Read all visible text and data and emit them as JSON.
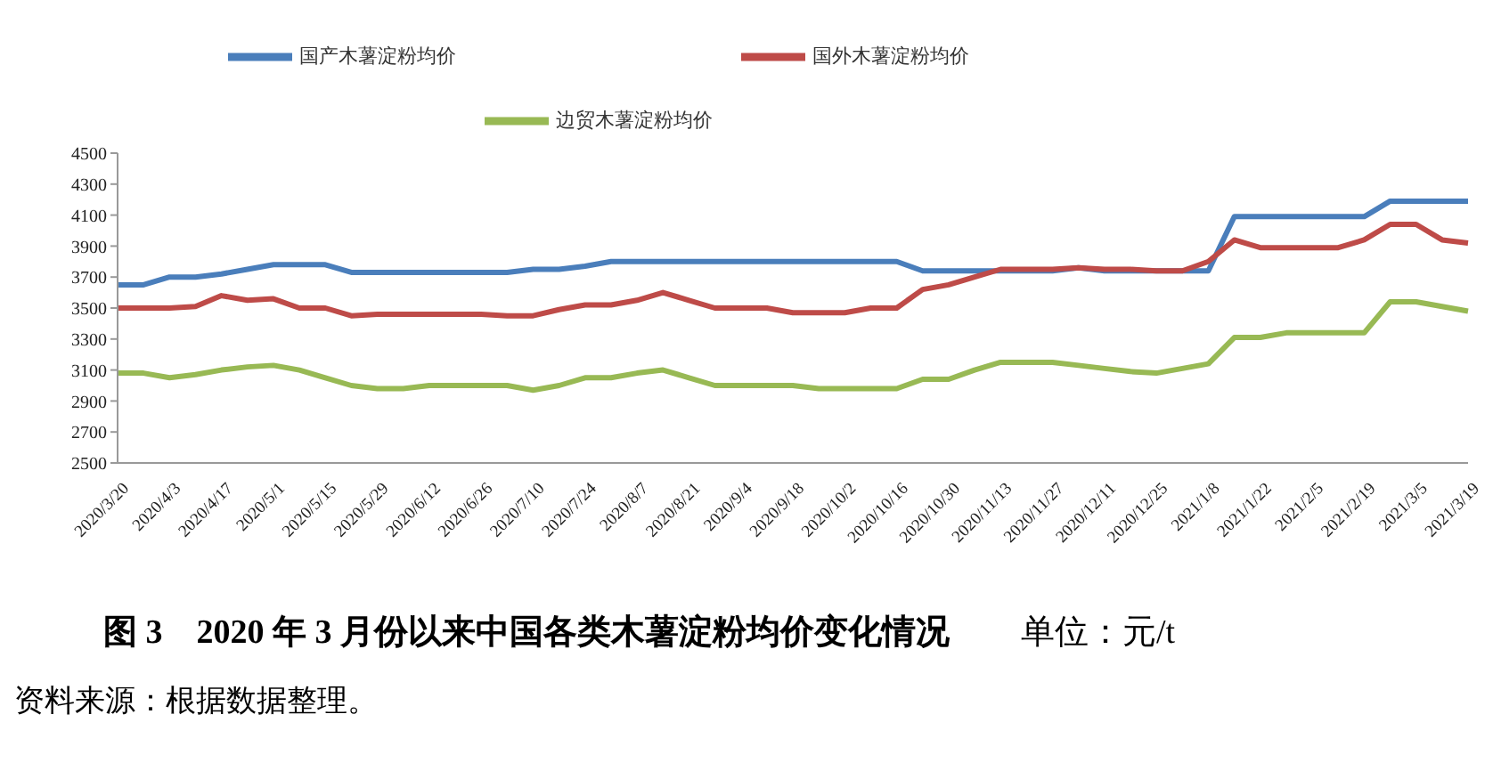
{
  "chart_data": {
    "type": "line",
    "title": "图 3　2020 年 3 月份以来中国各类木薯淀粉均价变化情况",
    "subtitle": "单位：元/t",
    "annotations": [
      "资料来源：根据数据整理。"
    ],
    "categories": [
      "2020/3/20",
      null,
      "2020/4/3",
      null,
      "2020/4/17",
      null,
      "2020/5/1",
      null,
      "2020/5/15",
      null,
      "2020/5/29",
      null,
      "2020/6/12",
      null,
      "2020/6/26",
      null,
      "2020/7/10",
      null,
      "2020/7/24",
      null,
      "2020/8/7",
      null,
      "2020/8/21",
      null,
      "2020/9/4",
      null,
      "2020/9/18",
      null,
      "2020/10/2",
      null,
      "2020/10/16",
      null,
      "2020/10/30",
      null,
      "2020/11/13",
      null,
      "2020/11/27",
      null,
      "2020/12/11",
      null,
      "2020/12/25",
      null,
      "2021/1/8",
      null,
      "2021/1/22",
      null,
      "2021/2/5",
      null,
      "2021/2/19",
      null,
      "2021/3/5",
      null,
      "2021/3/19"
    ],
    "series": [
      {
        "name": "国产木薯淀粉均价",
        "color": "#4a7ebb",
        "values": [
          3650,
          3650,
          3700,
          3700,
          3720,
          3750,
          3780,
          3780,
          3780,
          3730,
          3730,
          3730,
          3730,
          3730,
          3730,
          3730,
          3750,
          3750,
          3770,
          3800,
          3800,
          3800,
          3800,
          3800,
          3800,
          3800,
          3800,
          3800,
          3800,
          3800,
          3800,
          3740,
          3740,
          3740,
          3740,
          3740,
          3740,
          3760,
          3740,
          3740,
          3740,
          3740,
          3740,
          4090,
          4090,
          4090,
          4090,
          4090,
          4090,
          4190,
          4190,
          4190,
          4190
        ]
      },
      {
        "name": "国外木薯淀粉均价",
        "color": "#be4b48",
        "values": [
          3500,
          3500,
          3500,
          3510,
          3580,
          3550,
          3560,
          3500,
          3500,
          3450,
          3460,
          3460,
          3460,
          3460,
          3460,
          3450,
          3450,
          3490,
          3520,
          3520,
          3550,
          3600,
          3550,
          3500,
          3500,
          3500,
          3470,
          3470,
          3470,
          3500,
          3500,
          3620,
          3650,
          3700,
          3750,
          3750,
          3750,
          3760,
          3750,
          3750,
          3740,
          3740,
          3800,
          3940,
          3890,
          3890,
          3890,
          3890,
          3940,
          4040,
          4040,
          3940,
          3920
        ]
      },
      {
        "name": "边贸木薯淀粉均价",
        "color": "#98b954",
        "values": [
          3080,
          3080,
          3050,
          3070,
          3100,
          3120,
          3130,
          3100,
          3050,
          3000,
          2980,
          2980,
          3000,
          3000,
          3000,
          3000,
          2970,
          3000,
          3050,
          3050,
          3080,
          3100,
          3050,
          3000,
          3000,
          3000,
          3000,
          2980,
          2980,
          2980,
          2980,
          3040,
          3040,
          3100,
          3150,
          3150,
          3150,
          3130,
          3110,
          3090,
          3080,
          3110,
          3140,
          3310,
          3310,
          3340,
          3340,
          3340,
          3340,
          3540,
          3540,
          3510,
          3480
        ]
      }
    ],
    "ylim": [
      2500,
      4500
    ],
    "yticks": [
      2500,
      2700,
      2900,
      3100,
      3300,
      3500,
      3700,
      3900,
      4100,
      4300,
      4500
    ],
    "grid": false,
    "legend": "top",
    "marker": "none",
    "line_style": "solid"
  }
}
